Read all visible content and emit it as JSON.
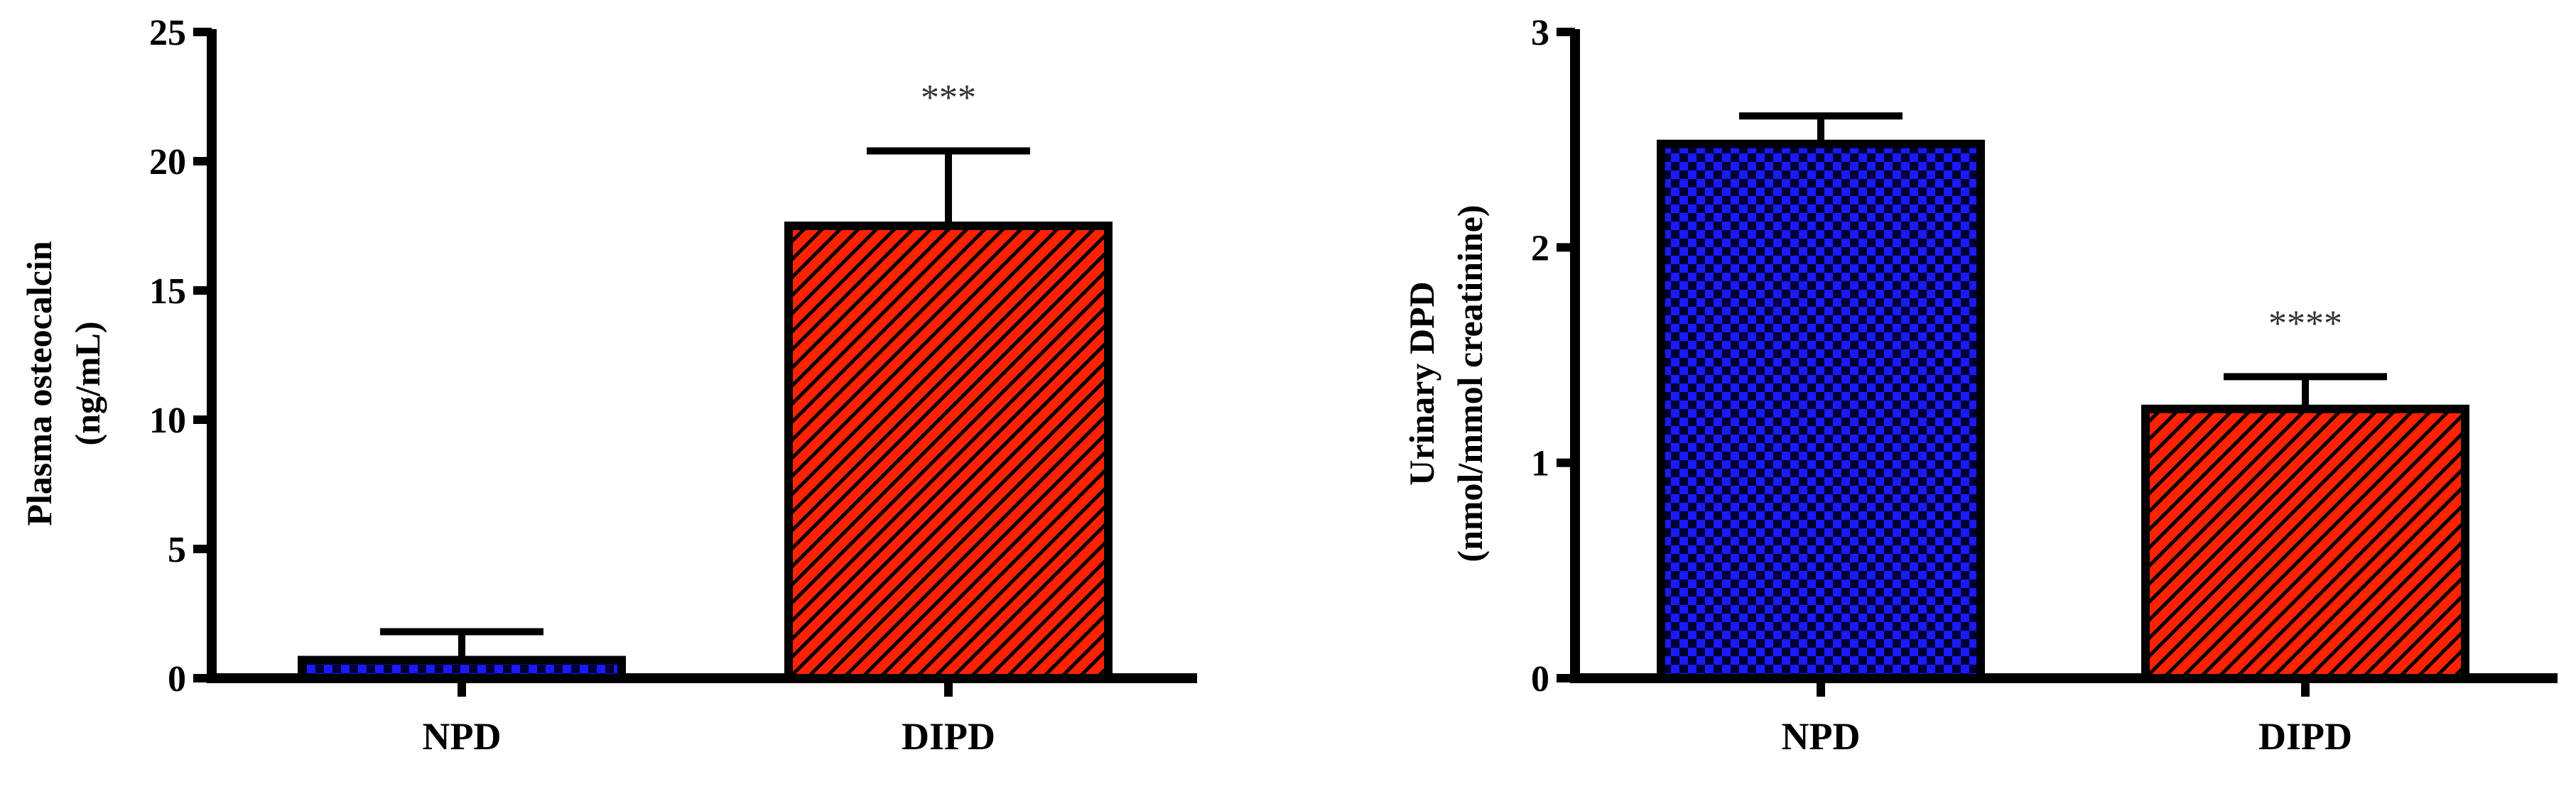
{
  "chart_data": [
    {
      "type": "bar",
      "categories": [
        "NPD",
        "DIPD"
      ],
      "values": [
        0.7,
        17.5
      ],
      "errors": [
        1.1,
        2.9
      ],
      "significance": [
        "",
        "***"
      ],
      "ylabel": "Plasma osteocalcin",
      "ylabel_unit": "(ng/mL)",
      "ylim": [
        0,
        25
      ],
      "yticks": [
        "0",
        "5",
        "10",
        "15",
        "20",
        "25"
      ],
      "fills": [
        "checker",
        "hatch"
      ],
      "grid": false
    },
    {
      "type": "bar",
      "categories": [
        "NPD",
        "DIPD"
      ],
      "values": [
        2.48,
        1.25
      ],
      "errors": [
        0.13,
        0.15
      ],
      "significance": [
        "",
        "****"
      ],
      "ylabel": "Urinary DPD",
      "ylabel_unit": "(nmol/mmol creatinine)",
      "ylim": [
        0,
        3
      ],
      "yticks": [
        "0",
        "1",
        "2",
        "3"
      ],
      "fills": [
        "checker",
        "hatch"
      ],
      "grid": false
    }
  ],
  "colors": {
    "npd_fill": "#1a1aff",
    "npd_dark": "#000033",
    "dipd_fill": "#ff2200",
    "dipd_hatch": "#000000",
    "axis": "#000000",
    "sig_text": "#333333"
  }
}
